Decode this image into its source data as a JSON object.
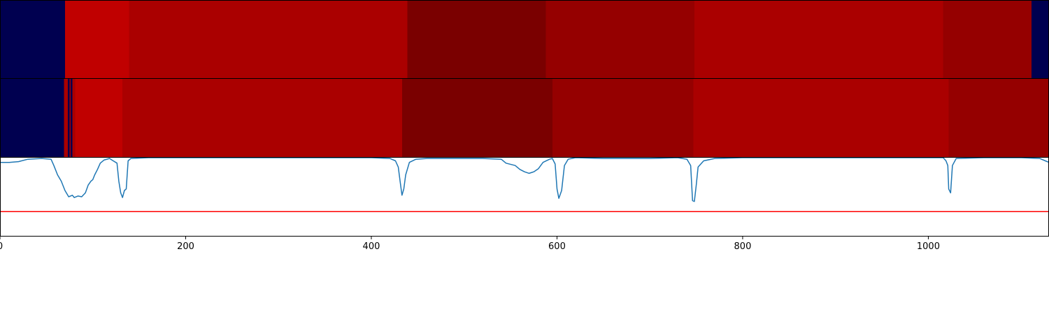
{
  "chart_data": [
    {
      "type": "heatmap",
      "panel": "track-1",
      "x_range": [
        0,
        1130
      ],
      "segments": [
        {
          "x0": 0,
          "x1": 70,
          "color": "#000050"
        },
        {
          "x0": 70,
          "x1": 139,
          "color": "#c00000"
        },
        {
          "x0": 139,
          "x1": 439,
          "color": "#aa0000"
        },
        {
          "x0": 439,
          "x1": 588,
          "color": "#7a0000"
        },
        {
          "x0": 588,
          "x1": 748,
          "color": "#950000"
        },
        {
          "x0": 748,
          "x1": 1016,
          "color": "#aa0000"
        },
        {
          "x0": 1016,
          "x1": 1111,
          "color": "#950000"
        },
        {
          "x0": 1111,
          "x1": 1130,
          "color": "#000050"
        }
      ]
    },
    {
      "type": "heatmap",
      "panel": "track-2",
      "x_range": [
        0,
        1130
      ],
      "segments": [
        {
          "x0": 0,
          "x1": 69,
          "color": "#000050"
        },
        {
          "x0": 69,
          "x1": 73,
          "color": "#aa0000"
        },
        {
          "x0": 73,
          "x1": 75,
          "color": "#000050"
        },
        {
          "x0": 75,
          "x1": 76,
          "color": "#aa0000"
        },
        {
          "x0": 76,
          "x1": 78,
          "color": "#000050"
        },
        {
          "x0": 78,
          "x1": 81,
          "color": "#aa0000"
        },
        {
          "x0": 81,
          "x1": 132,
          "color": "#c00000"
        },
        {
          "x0": 132,
          "x1": 433,
          "color": "#aa0000"
        },
        {
          "x0": 433,
          "x1": 595,
          "color": "#7a0000"
        },
        {
          "x0": 595,
          "x1": 747,
          "color": "#950000"
        },
        {
          "x0": 747,
          "x1": 1022,
          "color": "#aa0000"
        },
        {
          "x0": 1022,
          "x1": 1130,
          "color": "#950000"
        }
      ]
    },
    {
      "type": "line",
      "panel": "track-3",
      "x_range": [
        0,
        1130
      ],
      "y_range": [
        0,
        1
      ],
      "xticks": [
        0,
        200,
        400,
        600,
        800,
        1000
      ],
      "threshold": {
        "value": 0.31,
        "color": "#ff0000"
      },
      "series": [
        {
          "color": "#1f77b4",
          "points": [
            [
              0,
              0.94
            ],
            [
              10,
              0.94
            ],
            [
              20,
              0.95
            ],
            [
              30,
              0.98
            ],
            [
              45,
              0.99
            ],
            [
              55,
              0.98
            ],
            [
              58,
              0.9
            ],
            [
              62,
              0.78
            ],
            [
              66,
              0.7
            ],
            [
              70,
              0.58
            ],
            [
              74,
              0.5
            ],
            [
              78,
              0.52
            ],
            [
              80,
              0.49
            ],
            [
              84,
              0.51
            ],
            [
              88,
              0.5
            ],
            [
              92,
              0.55
            ],
            [
              95,
              0.65
            ],
            [
              98,
              0.7
            ],
            [
              100,
              0.72
            ],
            [
              102,
              0.78
            ],
            [
              105,
              0.85
            ],
            [
              108,
              0.93
            ],
            [
              112,
              0.97
            ],
            [
              118,
              0.99
            ],
            [
              122,
              0.96
            ],
            [
              126,
              0.93
            ],
            [
              128,
              0.7
            ],
            [
              130,
              0.55
            ],
            [
              132,
              0.49
            ],
            [
              134,
              0.58
            ],
            [
              136,
              0.6
            ],
            [
              138,
              0.96
            ],
            [
              141,
              0.99
            ],
            [
              160,
              1.0
            ],
            [
              200,
              1.0
            ],
            [
              300,
              1.0
            ],
            [
              400,
              1.0
            ],
            [
              420,
              0.99
            ],
            [
              426,
              0.96
            ],
            [
              429,
              0.88
            ],
            [
              431,
              0.7
            ],
            [
              433,
              0.52
            ],
            [
              435,
              0.6
            ],
            [
              437,
              0.78
            ],
            [
              441,
              0.94
            ],
            [
              448,
              0.98
            ],
            [
              460,
              0.99
            ],
            [
              520,
              0.99
            ],
            [
              540,
              0.98
            ],
            [
              545,
              0.93
            ],
            [
              555,
              0.9
            ],
            [
              560,
              0.85
            ],
            [
              565,
              0.82
            ],
            [
              570,
              0.8
            ],
            [
              575,
              0.82
            ],
            [
              580,
              0.86
            ],
            [
              585,
              0.94
            ],
            [
              592,
              0.98
            ],
            [
              595,
              0.99
            ],
            [
              598,
              0.92
            ],
            [
              600,
              0.6
            ],
            [
              602,
              0.48
            ],
            [
              605,
              0.58
            ],
            [
              608,
              0.9
            ],
            [
              612,
              0.98
            ],
            [
              620,
              1.0
            ],
            [
              650,
              0.99
            ],
            [
              700,
              0.99
            ],
            [
              730,
              1.0
            ],
            [
              740,
              0.98
            ],
            [
              744,
              0.9
            ],
            [
              746,
              0.45
            ],
            [
              748,
              0.44
            ],
            [
              750,
              0.65
            ],
            [
              752,
              0.88
            ],
            [
              758,
              0.96
            ],
            [
              770,
              0.99
            ],
            [
              800,
              1.0
            ],
            [
              900,
              1.0
            ],
            [
              1000,
              1.0
            ],
            [
              1016,
              1.0
            ],
            [
              1019,
              0.96
            ],
            [
              1021,
              0.9
            ],
            [
              1022,
              0.6
            ],
            [
              1024,
              0.55
            ],
            [
              1026,
              0.9
            ],
            [
              1030,
              0.99
            ],
            [
              1060,
              1.0
            ],
            [
              1100,
              1.0
            ],
            [
              1120,
              0.99
            ],
            [
              1126,
              0.96
            ],
            [
              1130,
              0.94
            ]
          ]
        }
      ]
    }
  ]
}
